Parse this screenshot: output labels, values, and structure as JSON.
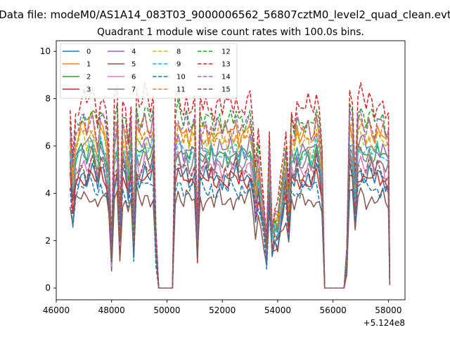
{
  "figure": {
    "suptitle": "Data file: modeM0/AS1A14_083T03_9000006562_56807cztM0_level2_quad_clean.evt"
  },
  "chart_data": {
    "type": "line",
    "title": "Quadrant 1 module wise count rates with 100.0s bins.",
    "xlabel": "",
    "ylabel": "",
    "x_offset_label": "+5.124e8",
    "xlim": [
      46000,
      58600
    ],
    "ylim": [
      -0.5,
      10.45
    ],
    "x_ticks": [
      46000,
      48000,
      50000,
      52000,
      54000,
      56000,
      58000
    ],
    "x_tick_labels": [
      "46000",
      "48000",
      "50000",
      "52000",
      "54000",
      "56000",
      "58000"
    ],
    "y_ticks": [
      0,
      2,
      4,
      6,
      8,
      10
    ],
    "y_tick_labels": [
      "0",
      "2",
      "4",
      "6",
      "8",
      "10"
    ],
    "grid": false,
    "legend": {
      "position": "top-left",
      "columns": 4
    },
    "x": [
      46500,
      46600,
      46700,
      46800,
      46900,
      47000,
      47100,
      47200,
      47300,
      47400,
      47500,
      47600,
      47700,
      47800,
      47900,
      48000,
      48100,
      48200,
      48300,
      48400,
      48500,
      48600,
      48700,
      48800,
      48900,
      49000,
      49100,
      49200,
      49300,
      49400,
      49500,
      49600,
      49700,
      49800,
      49900,
      50000,
      50100,
      50200,
      50300,
      50400,
      50500,
      50600,
      50700,
      50800,
      50900,
      51000,
      51100,
      51200,
      51300,
      51400,
      51500,
      51600,
      51700,
      51800,
      51900,
      52000,
      52100,
      52200,
      52300,
      52400,
      52500,
      52600,
      52700,
      52800,
      52900,
      53000,
      53100,
      53200,
      53300,
      53400,
      53500,
      53600,
      53700,
      53800,
      53900,
      54000,
      54100,
      54200,
      54300,
      54400,
      54500,
      54600,
      54700,
      54800,
      54900,
      55000,
      55100,
      55200,
      55300,
      55400,
      55500,
      55600,
      55700,
      55800,
      55900,
      56000,
      56100,
      56200,
      56300,
      56400,
      56500,
      56600,
      56700,
      56800,
      56900,
      57000,
      57100,
      57200,
      57300,
      57400,
      57500,
      57600,
      57700,
      57800,
      57900,
      58000,
      58050
    ],
    "base_profile": [
      0.94,
      0.66,
      0.89,
      0.92,
      0.96,
      0.97,
      0.92,
      0.98,
      1.0,
      0.93,
      0.85,
      0.99,
      0.96,
      0.9,
      0.75,
      0.22,
      0.93,
      1.0,
      0.36,
      0.95,
      0.9,
      0.76,
      0.97,
      0.32,
      0.99,
      0.93,
      0.94,
      1.0,
      0.96,
      0.92,
      1.0,
      0.3,
      0.0,
      0.0,
      0.0,
      0.0,
      0.0,
      0.0,
      0.93,
      1.0,
      0.95,
      0.91,
      0.97,
      0.9,
      0.93,
      0.96,
      0.28,
      0.97,
      0.92,
      0.95,
      0.9,
      0.96,
      0.88,
      0.93,
      0.96,
      0.9,
      0.94,
      0.91,
      0.96,
      0.92,
      0.97,
      0.89,
      0.95,
      0.91,
      0.94,
      0.98,
      0.86,
      0.6,
      0.77,
      0.62,
      0.48,
      0.26,
      0.79,
      0.33,
      0.42,
      0.4,
      0.54,
      0.67,
      0.79,
      0.49,
      0.91,
      0.86,
      0.96,
      0.9,
      0.93,
      0.92,
      0.95,
      0.89,
      0.91,
      1.0,
      0.9,
      0.73,
      0.0,
      0.0,
      0.0,
      0.0,
      0.0,
      0.0,
      0.0,
      0.0,
      0.22,
      1.0,
      0.95,
      0.6,
      0.97,
      1.0,
      0.96,
      0.92,
      0.97,
      0.94,
      0.9,
      0.96,
      0.93,
      0.95,
      0.89,
      0.88,
      0.03
    ],
    "series": [
      {
        "name": "0",
        "color": "#1f77b4",
        "dash": "solid",
        "level": 5.0
      },
      {
        "name": "1",
        "color": "#ff7f0e",
        "dash": "solid",
        "level": 7.1
      },
      {
        "name": "2",
        "color": "#2ca02c",
        "dash": "solid",
        "level": 6.0
      },
      {
        "name": "3",
        "color": "#d62728",
        "dash": "solid",
        "level": 4.9
      },
      {
        "name": "4",
        "color": "#9467bd",
        "dash": "solid",
        "level": 6.3
      },
      {
        "name": "5",
        "color": "#8c564b",
        "dash": "solid",
        "level": 4.0
      },
      {
        "name": "6",
        "color": "#e377c2",
        "dash": "solid",
        "level": 5.5
      },
      {
        "name": "7",
        "color": "#7f7f7f",
        "dash": "solid",
        "level": 5.7
      },
      {
        "name": "8",
        "color": "#bcbd22",
        "dash": "dashed",
        "level": 6.6
      },
      {
        "name": "9",
        "color": "#17becf",
        "dash": "dashed",
        "level": 6.1
      },
      {
        "name": "10",
        "color": "#1f77b4",
        "dash": "dashed",
        "level": 4.5
      },
      {
        "name": "11",
        "color": "#ff7f0e",
        "dash": "dashed",
        "level": 6.9
      },
      {
        "name": "12",
        "color": "#2ca02c",
        "dash": "dashed",
        "level": 7.6
      },
      {
        "name": "13",
        "color": "#d62728",
        "dash": "dashed",
        "level": 8.3
      },
      {
        "name": "14",
        "color": "#9467bd",
        "dash": "dashed",
        "level": 7.3
      },
      {
        "name": "15",
        "color": "#8c564b",
        "dash": "dashed",
        "level": 5.3
      }
    ]
  }
}
